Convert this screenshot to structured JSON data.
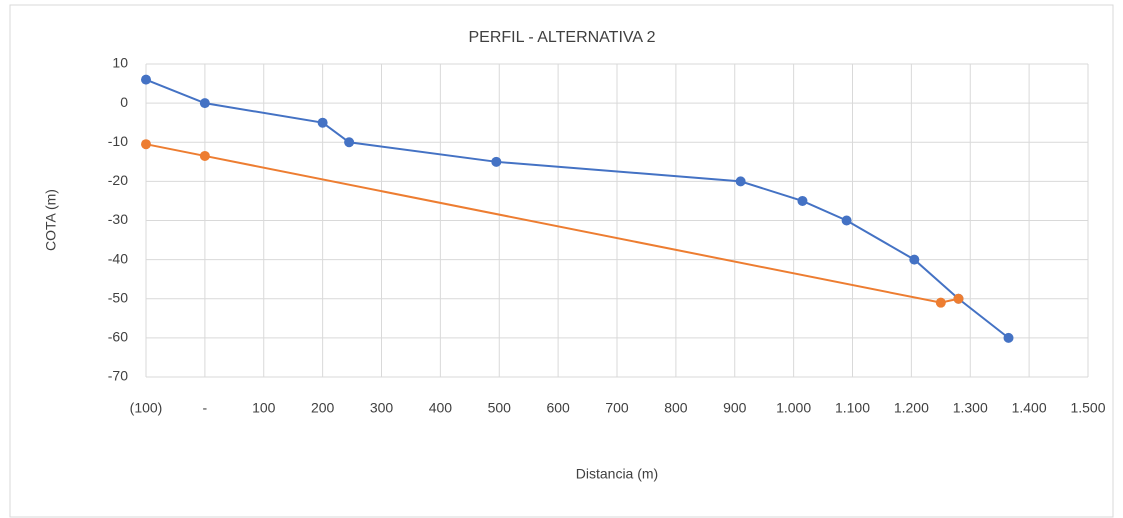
{
  "chart_data": {
    "type": "line",
    "title": "PERFIL - ALTERNATIVA 2",
    "x_label": "Distancia (m)",
    "y_label": "COTA (m)",
    "xlim": [
      -100,
      1500
    ],
    "xticks": [
      {
        "value": -100,
        "label": "(100)"
      },
      {
        "value": 0,
        "label": "-"
      },
      100,
      200,
      300,
      400,
      500,
      600,
      700,
      800,
      900,
      {
        "value": 1000,
        "label": "1.000"
      },
      {
        "value": 1100,
        "label": "1.100"
      },
      {
        "value": 1200,
        "label": "1.200"
      },
      {
        "value": 1300,
        "label": "1.300"
      },
      {
        "value": 1400,
        "label": "1.400"
      },
      {
        "value": 1500,
        "label": "1.500"
      }
    ],
    "ylim": [
      -70,
      10
    ],
    "yticks": [
      10,
      0,
      -10,
      -20,
      -30,
      -40,
      -50,
      -60,
      -70
    ],
    "grid": true,
    "series": [
      {
        "color": "#4472c4",
        "x": [
          -100,
          0,
          200,
          245,
          495,
          910,
          1015,
          1090,
          1205,
          1280,
          1365
        ],
        "values": [
          6,
          0,
          -5,
          -10,
          -15,
          -20,
          -25,
          -30,
          -40,
          -50,
          -60
        ]
      },
      {
        "color": "#ed7d31",
        "x": [
          -100,
          0,
          1250,
          1280
        ],
        "values": [
          -10.5,
          -13.5,
          -51,
          -50
        ]
      }
    ]
  }
}
